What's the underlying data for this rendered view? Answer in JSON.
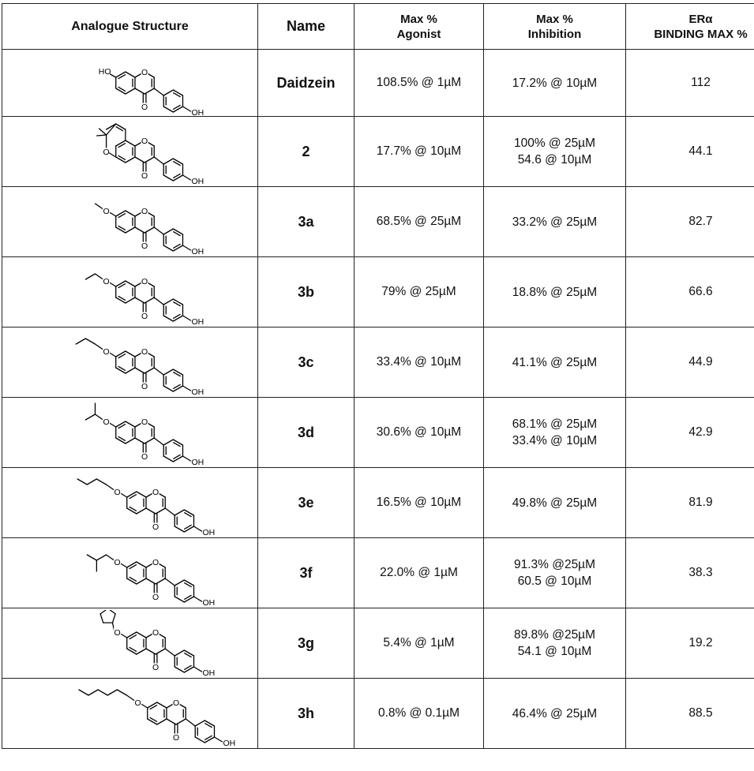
{
  "table": {
    "headers": {
      "structure": "Analogue Structure",
      "name": "Name",
      "agonist": [
        "Max %",
        "Agonist"
      ],
      "inhibition": [
        "Max %",
        "Inhibition"
      ],
      "binding": [
        "ERα",
        "BINDING MAX %"
      ]
    },
    "atom_labels": {
      "oxygen": "O",
      "hydroxyl": "OH",
      "hydroxyl_left": "HO"
    },
    "rows": [
      {
        "name": "Daidzein",
        "agonist": "108.5% @ 1µM",
        "inhibition": [
          "17.2% @ 10µM"
        ],
        "binding": "112",
        "substituent": "hydroxy"
      },
      {
        "name": "2",
        "agonist": "17.7% @ 10µM",
        "inhibition": [
          "100% @ 25µM",
          "54.6 @ 10µM"
        ],
        "binding": "44.1",
        "substituent": "dimethylpyran"
      },
      {
        "name": "3a",
        "agonist": "68.5% @ 25µM",
        "inhibition": [
          "33.2% @ 25µM"
        ],
        "binding": "82.7",
        "substituent": "methoxy"
      },
      {
        "name": "3b",
        "agonist": "79% @ 25µM",
        "inhibition": [
          "18.8% @ 25µM"
        ],
        "binding": "66.6",
        "substituent": "ethoxy"
      },
      {
        "name": "3c",
        "agonist": "33.4% @ 10µM",
        "inhibition": [
          "41.1% @ 25µM"
        ],
        "binding": "44.9",
        "substituent": "propoxy"
      },
      {
        "name": "3d",
        "agonist": "30.6% @ 10µM",
        "inhibition": [
          "68.1% @ 25µM",
          "33.4% @ 10µM"
        ],
        "binding": "42.9",
        "substituent": "isopropoxy"
      },
      {
        "name": "3e",
        "agonist": "16.5% @ 10µM",
        "inhibition": [
          "49.8% @ 25µM"
        ],
        "binding": "81.9",
        "substituent": "butoxy"
      },
      {
        "name": "3f",
        "agonist": "22.0% @ 1µM",
        "inhibition": [
          "91.3% @25µM",
          "60.5 @ 10µM"
        ],
        "binding": "38.3",
        "substituent": "isobutoxy"
      },
      {
        "name": "3g",
        "agonist": "5.4% @ 1µM",
        "inhibition": [
          "89.8% @25µM",
          "54.1 @ 10µM"
        ],
        "binding": "19.2",
        "substituent": "cyclopentoxy"
      },
      {
        "name": "3h",
        "agonist": "0.8% @ 0.1µM",
        "inhibition": [
          "46.4% @ 25µM"
        ],
        "binding": "88.5",
        "substituent": "hexoxy"
      }
    ]
  }
}
